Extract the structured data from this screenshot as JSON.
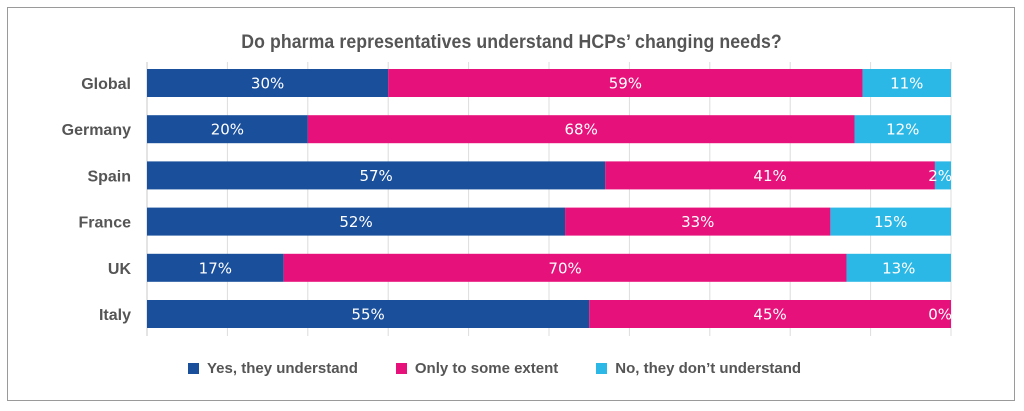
{
  "chart_data": {
    "type": "bar",
    "orientation": "horizontal",
    "stacked": true,
    "title": "Do pharma representatives understand HCPs’ changing needs?",
    "categories": [
      "Global",
      "Germany",
      "Spain",
      "France",
      "UK",
      "Italy"
    ],
    "series": [
      {
        "name": "Yes, they understand",
        "color": "#1a4f9c",
        "values": [
          30,
          20,
          57,
          52,
          17,
          55
        ],
        "labels": [
          "30%",
          "20%",
          "57%",
          "52%",
          "17%",
          "55%"
        ]
      },
      {
        "name": "Only to some extent",
        "color": "#e6117a",
        "values": [
          59,
          68,
          41,
          33,
          70,
          45
        ],
        "labels": [
          "59%",
          "68%",
          "41%",
          "33%",
          "70%",
          "45%"
        ]
      },
      {
        "name": "No, they don’t understand",
        "color": "#2cb8e6",
        "values": [
          11,
          12,
          2,
          15,
          13,
          0
        ],
        "labels": [
          "11%",
          "12%",
          "2%",
          "15%",
          "13%",
          "0%"
        ]
      }
    ],
    "xlim": [
      0,
      100
    ],
    "grid": true,
    "legend_position": "bottom"
  }
}
